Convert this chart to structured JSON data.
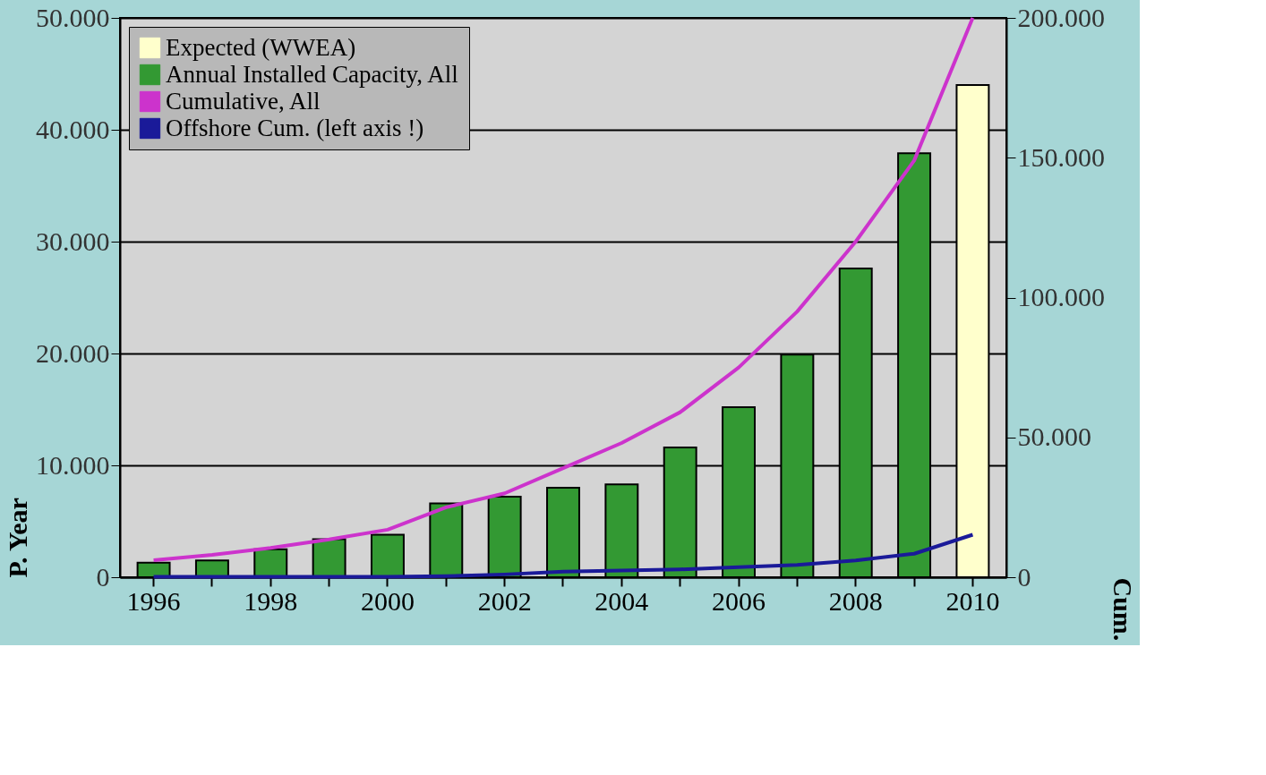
{
  "chart_data": {
    "type": "bar",
    "xlabel": null,
    "ylabel": "P. Year",
    "y2label": "Cum.",
    "categories": [
      "1996",
      null,
      "1998",
      null,
      "2000",
      null,
      "2002",
      null,
      "2004",
      null,
      "2006",
      null,
      "2008",
      null,
      "2010"
    ],
    "series": [
      {
        "name": "Expected (WWEA)",
        "color": "#ffffcc",
        "values": [
          null,
          null,
          null,
          null,
          null,
          null,
          null,
          null,
          null,
          null,
          null,
          null,
          null,
          null,
          44000
        ]
      },
      {
        "name": "Annual Installed Capacity, All",
        "color": "#339933",
        "values": [
          1300,
          1500,
          2500,
          3400,
          3800,
          6600,
          7200,
          8000,
          8300,
          11600,
          15200,
          19900,
          27600,
          37900,
          null
        ]
      },
      {
        "name": "Cumulative, All",
        "type": "line",
        "axis": "y2",
        "color": "#cc33cc",
        "values": [
          6100,
          8000,
          10500,
          13500,
          17000,
          25000,
          30000,
          39000,
          48000,
          59000,
          75000,
          95000,
          120000,
          149000,
          200000
        ]
      },
      {
        "name": "Offshore Cum. (left axis !)",
        "type": "line",
        "color": "#1a1a99",
        "values": [
          50,
          50,
          50,
          50,
          50,
          100,
          250,
          500,
          600,
          700,
          900,
          1100,
          1500,
          2100,
          3800
        ]
      }
    ],
    "ylim": [
      0,
      50000
    ],
    "yticks": [
      {
        "value": 0,
        "label": "0"
      },
      {
        "value": 10000,
        "label": "10.000"
      },
      {
        "value": 20000,
        "label": "20.000"
      },
      {
        "value": 30000,
        "label": "30.000"
      },
      {
        "value": 40000,
        "label": "40.000"
      },
      {
        "value": 50000,
        "label": "50.000"
      }
    ],
    "y2lim": [
      0,
      200000
    ],
    "y2ticks": [
      {
        "value": 0,
        "label": "0"
      },
      {
        "value": 50000,
        "label": "50.000"
      },
      {
        "value": 100000,
        "label": "100.000"
      },
      {
        "value": 150000,
        "label": "150.000"
      },
      {
        "value": 200000,
        "label": "200.000"
      }
    ],
    "grid": "y",
    "legend": "top left"
  }
}
